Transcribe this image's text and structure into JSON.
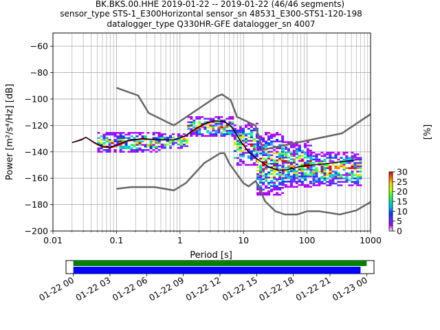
{
  "chart_data": {
    "type": "heatmap",
    "title_lines": [
      "BK.BKS.00.HHE   2019-01-22 -- 2019-01-22  (46/46 segments)",
      "sensor_type STS-1_E300Horizontal sensor_sn 48531_E300-STS1-120-198",
      "datalogger_type Q330HR-GFE datalogger_sn 4007"
    ],
    "xlabel": "Period [s]",
    "ylabel": "Power [m²/s⁴/Hz] [dB]",
    "x_scale": "log",
    "xlim": [
      0.01,
      1000
    ],
    "ylim": [
      -200,
      -50
    ],
    "x_ticks": [
      {
        "value": 0.01,
        "label": "0.01"
      },
      {
        "value": 0.1,
        "label": "0.1"
      },
      {
        "value": 1,
        "label": "1"
      },
      {
        "value": 10,
        "label": "10"
      },
      {
        "value": 100,
        "label": "100"
      },
      {
        "value": 1000,
        "label": "1000"
      }
    ],
    "y_ticks": [
      -60,
      -80,
      -100,
      -120,
      -140,
      -160,
      -180,
      -200
    ],
    "grid": true,
    "colorbar": {
      "label": "[%]",
      "ticks": [
        0,
        5,
        10,
        15,
        20,
        25,
        30
      ],
      "range": [
        0,
        30
      ],
      "colors": [
        "#ffffff",
        "#b000ff",
        "#5a2dff",
        "#0040ff",
        "#00b4ff",
        "#00e890",
        "#40ff40",
        "#c8ff00",
        "#ffd800",
        "#ff6a00",
        "#e00000"
      ]
    },
    "noise_models": {
      "high": {
        "name": "NHNM",
        "color": "#666666",
        "points": [
          [
            0.1,
            -91.5
          ],
          [
            0.22,
            -97.4
          ],
          [
            0.32,
            -110.5
          ],
          [
            0.8,
            -120
          ],
          [
            3.8,
            -98
          ],
          [
            4.6,
            -96.5
          ],
          [
            6.3,
            -101
          ],
          [
            7.9,
            -113.5
          ],
          [
            15.4,
            -120
          ],
          [
            20,
            -138.5
          ],
          [
            354.8,
            -126
          ],
          [
            1000,
            -111.5
          ]
        ]
      },
      "low": {
        "name": "NLNM",
        "color": "#666666",
        "points": [
          [
            0.1,
            -168
          ],
          [
            0.17,
            -166.7
          ],
          [
            0.4,
            -166.7
          ],
          [
            0.8,
            -169.2
          ],
          [
            1.24,
            -163.7
          ],
          [
            2.4,
            -148.6
          ],
          [
            4.3,
            -141.1
          ],
          [
            5.0,
            -141.1
          ],
          [
            6.0,
            -149
          ],
          [
            10,
            -163.8
          ],
          [
            12,
            -166.2
          ],
          [
            15.6,
            -162.1
          ],
          [
            21.9,
            -177.5
          ],
          [
            31.6,
            -185
          ],
          [
            45,
            -187.5
          ],
          [
            70,
            -187.5
          ],
          [
            101,
            -185
          ],
          [
            154,
            -185
          ],
          [
            328,
            -187.5
          ],
          [
            600,
            -184.4
          ],
          [
            1000,
            -178
          ]
        ]
      }
    },
    "mean_curve": {
      "color": "#000000",
      "points": [
        [
          0.02,
          -133
        ],
        [
          0.028,
          -131
        ],
        [
          0.033,
          -129
        ],
        [
          0.045,
          -133
        ],
        [
          0.06,
          -136
        ],
        [
          0.08,
          -136.5
        ],
        [
          0.1,
          -135
        ],
        [
          0.15,
          -131.5
        ],
        [
          0.25,
          -130
        ],
        [
          0.5,
          -131
        ],
        [
          0.8,
          -131
        ],
        [
          1.2,
          -128
        ],
        [
          1.7,
          -123
        ],
        [
          2.5,
          -118.5
        ],
        [
          3.5,
          -116.5
        ],
        [
          5,
          -117
        ],
        [
          6.5,
          -121
        ],
        [
          9,
          -132
        ],
        [
          12,
          -140
        ],
        [
          17,
          -146
        ],
        [
          25,
          -151.5
        ],
        [
          35,
          -154
        ],
        [
          50,
          -153.5
        ],
        [
          80,
          -151
        ],
        [
          120,
          -150
        ],
        [
          200,
          -149
        ],
        [
          350,
          -147.5
        ],
        [
          600,
          -146
        ]
      ]
    },
    "median_curve": {
      "color": "#ff0000",
      "points": [
        [
          0.02,
          -133
        ],
        [
          0.028,
          -130.5
        ],
        [
          0.033,
          -129
        ],
        [
          0.045,
          -133.5
        ],
        [
          0.06,
          -136.5
        ],
        [
          0.08,
          -137
        ],
        [
          0.1,
          -136
        ],
        [
          0.15,
          -132
        ],
        [
          0.25,
          -130.5
        ],
        [
          0.5,
          -131
        ],
        [
          0.8,
          -131
        ],
        [
          1.2,
          -128.5
        ],
        [
          1.7,
          -123.5
        ],
        [
          2.5,
          -119
        ],
        [
          3.5,
          -116.5
        ],
        [
          5,
          -117
        ],
        [
          6.5,
          -121.5
        ]
      ]
    },
    "spread_blocks": [
      {
        "x": [
          0.05,
          0.5
        ],
        "y": [
          -140,
          -125
        ]
      },
      {
        "x": [
          0.5,
          1.3
        ],
        "y": [
          -137,
          -126
        ]
      },
      {
        "x": [
          1.3,
          7
        ],
        "y": [
          -128,
          -113
        ]
      },
      {
        "x": [
          7,
          16
        ],
        "y": [
          -150,
          -118
        ]
      },
      {
        "x": [
          16,
          40
        ],
        "y": [
          -172,
          -125
        ]
      },
      {
        "x": [
          40,
          110
        ],
        "y": [
          -166,
          -132
        ]
      },
      {
        "x": [
          110,
          700
        ],
        "y": [
          -166,
          -140
        ]
      }
    ],
    "timeline": {
      "xtick_labels": [
        "01-22 00",
        "01-22 03",
        "01-22 06",
        "01-22 09",
        "01-22 12",
        "01-22 15",
        "01-22 18",
        "01-22 21",
        "01-23 00"
      ],
      "xrange_hours": [
        -0.6,
        24.6
      ],
      "bars": [
        {
          "color": "#008000",
          "start_hours": 0,
          "end_hours": 24.0
        },
        {
          "color": "#0000ff",
          "start_hours": 0,
          "end_hours": 23.5
        }
      ]
    }
  }
}
